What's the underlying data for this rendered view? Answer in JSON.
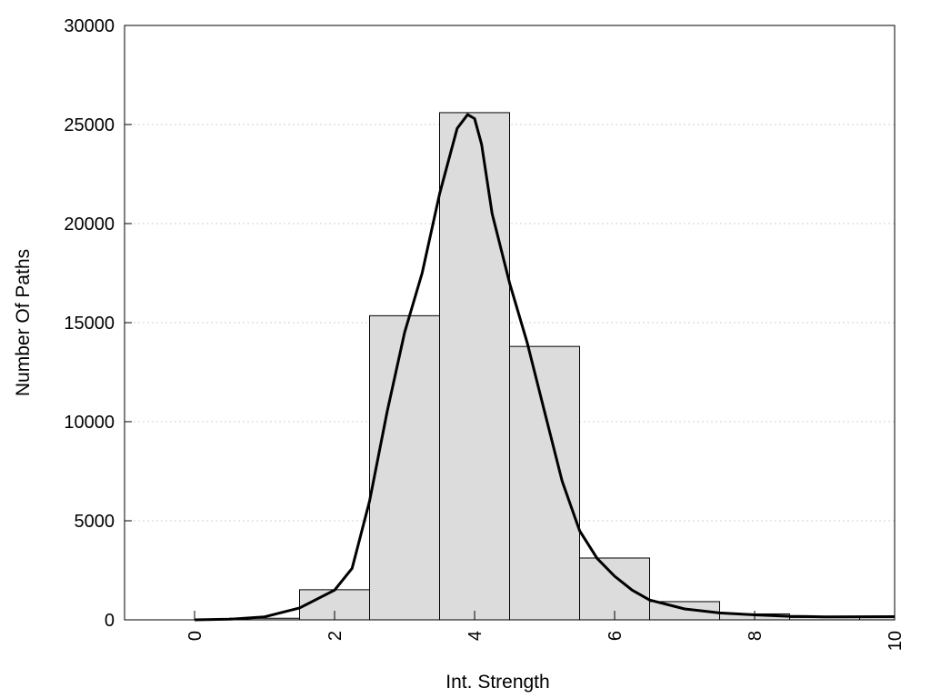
{
  "chart_data": {
    "type": "bar",
    "xlabel": "Int. Strength",
    "ylabel": "Number Of Paths",
    "xlim": [
      -1,
      10
    ],
    "ylim": [
      0,
      30000
    ],
    "x_ticks": [
      "0",
      "2",
      "4",
      "6",
      "8",
      "10"
    ],
    "y_ticks": [
      "0",
      "5000",
      "10000",
      "15000",
      "20000",
      "25000",
      "30000"
    ],
    "grid": "horizontal dotted",
    "legend": "none",
    "bins": [
      {
        "start": 0.5,
        "end": 1.5,
        "value": 80
      },
      {
        "start": 1.5,
        "end": 2.5,
        "value": 1520
      },
      {
        "start": 2.5,
        "end": 3.5,
        "value": 15350
      },
      {
        "start": 3.5,
        "end": 4.5,
        "value": 25600
      },
      {
        "start": 4.5,
        "end": 5.5,
        "value": 13800
      },
      {
        "start": 5.5,
        "end": 6.5,
        "value": 3120
      },
      {
        "start": 6.5,
        "end": 7.5,
        "value": 920
      },
      {
        "start": 7.5,
        "end": 8.5,
        "value": 300
      },
      {
        "start": 8.5,
        "end": 9.5,
        "value": 120
      },
      {
        "start": 9.5,
        "end": 10.0,
        "value": 130
      }
    ],
    "fit_curve": {
      "x": [
        0,
        0.5,
        1,
        1.5,
        2,
        2.25,
        2.5,
        2.75,
        3,
        3.25,
        3.5,
        3.75,
        3.9,
        4,
        4.1,
        4.25,
        4.5,
        4.75,
        5,
        5.25,
        5.5,
        5.75,
        6,
        6.25,
        6.5,
        7,
        7.5,
        8,
        8.5,
        9,
        10
      ],
      "y": [
        0,
        30,
        150,
        600,
        1500,
        2600,
        6000,
        10500,
        14500,
        17500,
        21500,
        24800,
        25500,
        25300,
        24000,
        20500,
        17000,
        14000,
        10500,
        7000,
        4500,
        3100,
        2200,
        1500,
        1000,
        550,
        350,
        250,
        180,
        150,
        160
      ]
    },
    "colors": {
      "bar_fill": "#dcdcdc",
      "bar_stroke": "#000000",
      "curve": "#000000",
      "grid": "#d0d0d0"
    }
  }
}
